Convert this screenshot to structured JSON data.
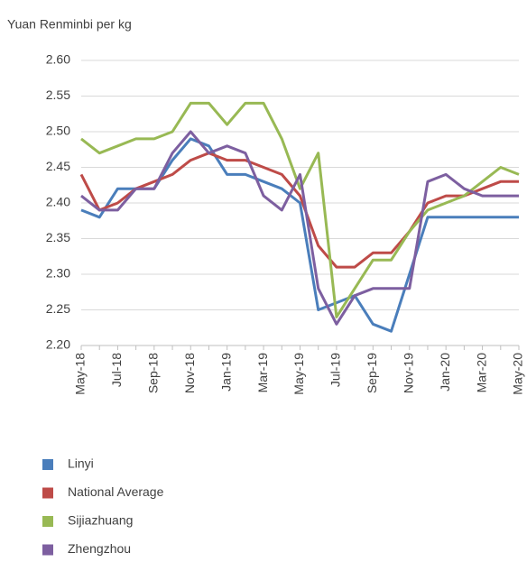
{
  "chart_data": {
    "type": "line",
    "y_axis_label": "Yuan Renminbi per kg",
    "categories": [
      "May-18",
      null,
      "Jul-18",
      null,
      "Sep-18",
      null,
      "Nov-18",
      null,
      "Jan-19",
      null,
      "Mar-19",
      null,
      "May-19",
      null,
      "Jul-19",
      null,
      "Sep-19",
      null,
      "Nov-19",
      null,
      "Jan-20",
      null,
      "Mar-20",
      null,
      "May-20"
    ],
    "series": [
      {
        "name": "Linyi",
        "color": "#4a7ebb",
        "values": [
          2.39,
          2.38,
          2.42,
          2.42,
          2.42,
          2.46,
          2.49,
          2.48,
          2.44,
          2.44,
          2.43,
          2.42,
          2.4,
          2.25,
          2.26,
          2.27,
          2.23,
          2.22,
          2.3,
          2.38,
          2.38,
          2.38,
          2.38,
          2.38,
          2.38
        ]
      },
      {
        "name": "National Average",
        "color": "#be4b48",
        "values": [
          2.44,
          2.39,
          2.4,
          2.42,
          2.43,
          2.44,
          2.46,
          2.47,
          2.46,
          2.46,
          2.45,
          2.44,
          2.41,
          2.34,
          2.31,
          2.31,
          2.33,
          2.33,
          2.36,
          2.4,
          2.41,
          2.41,
          2.42,
          2.43,
          2.43
        ]
      },
      {
        "name": "Sijiazhuang",
        "color": "#98b954",
        "values": [
          2.49,
          2.47,
          2.48,
          2.49,
          2.49,
          2.5,
          2.54,
          2.54,
          2.51,
          2.54,
          2.54,
          2.49,
          2.42,
          2.47,
          2.24,
          2.28,
          2.32,
          2.32,
          2.36,
          2.39,
          2.4,
          2.41,
          2.43,
          2.45,
          2.44
        ]
      },
      {
        "name": "Zhengzhou",
        "color": "#7d5fa0",
        "values": [
          2.41,
          2.39,
          2.39,
          2.42,
          2.42,
          2.47,
          2.5,
          2.47,
          2.48,
          2.47,
          2.41,
          2.39,
          2.44,
          2.28,
          2.23,
          2.27,
          2.28,
          2.28,
          2.28,
          2.43,
          2.44,
          2.42,
          2.41,
          2.41,
          2.41
        ]
      }
    ],
    "ylim": [
      2.2,
      2.6
    ],
    "yticks": [
      {
        "value": 2.2,
        "label": "2.20"
      },
      2.25,
      {
        "value": 2.3,
        "label": "2.30"
      },
      2.35,
      {
        "value": 2.4,
        "label": "2.40"
      },
      2.45,
      {
        "value": 2.5,
        "label": "2.50"
      },
      2.55,
      {
        "value": 2.6,
        "label": "2.60"
      }
    ],
    "grid": true,
    "legend": "bottom"
  }
}
